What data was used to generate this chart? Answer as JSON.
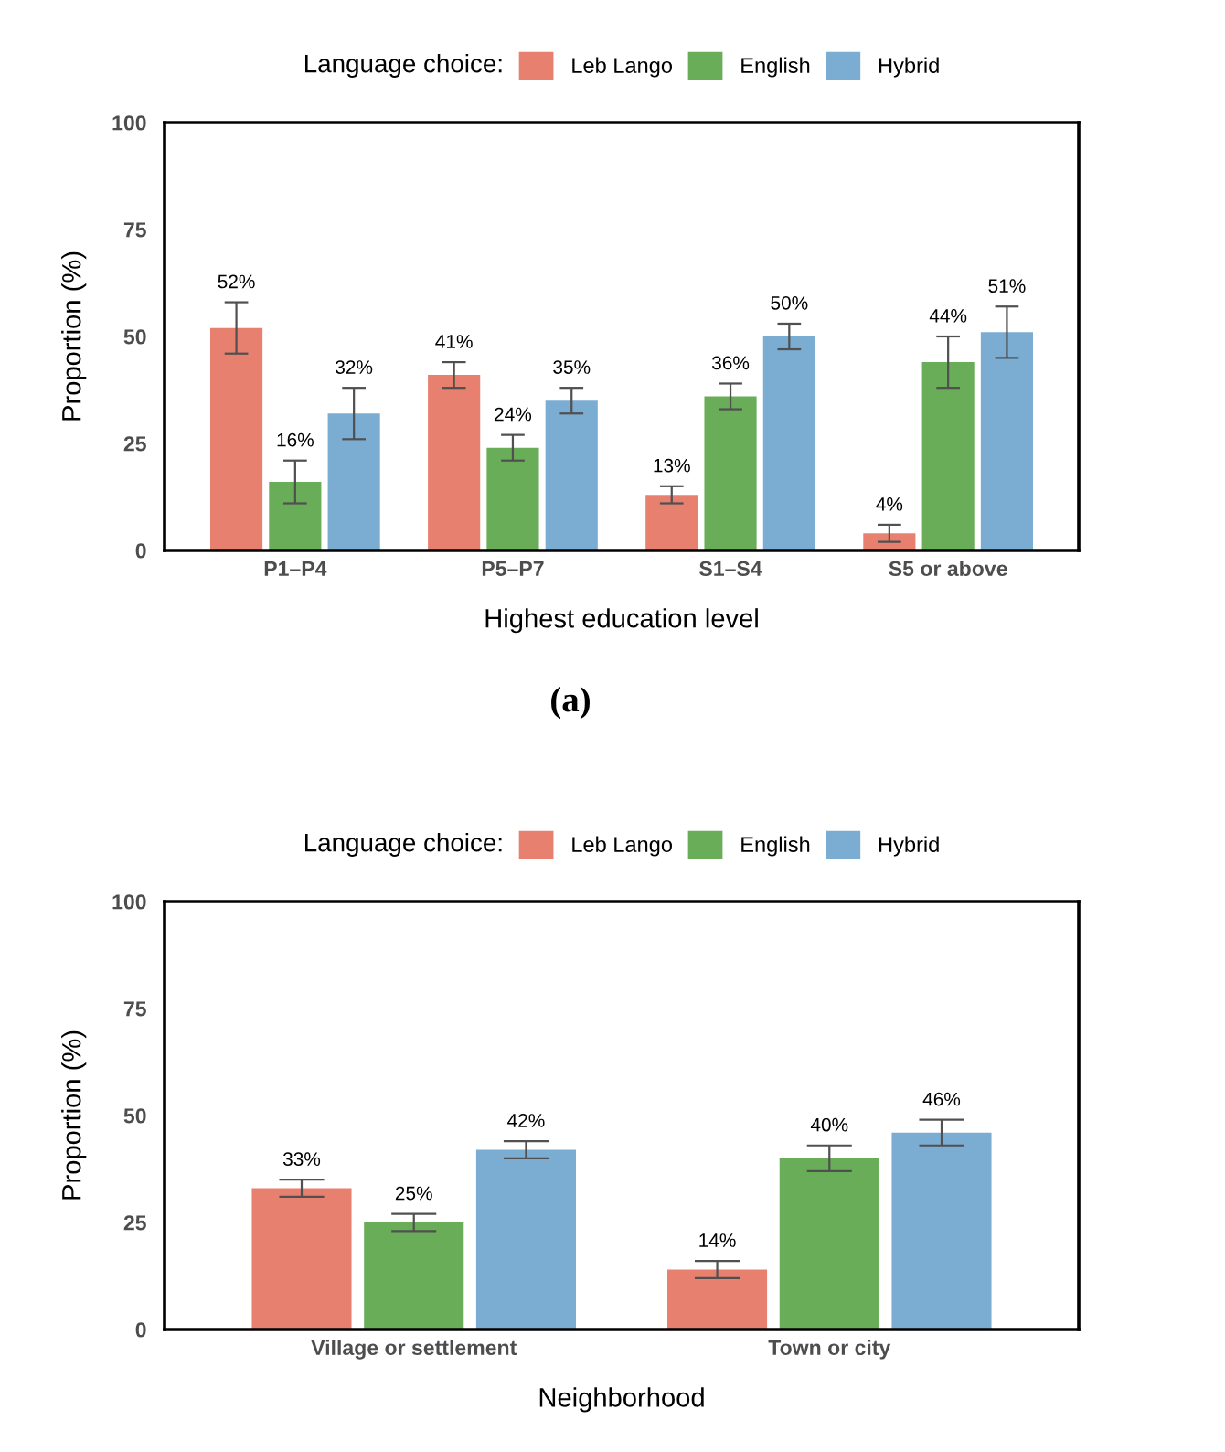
{
  "chart_data": [
    {
      "type": "bar",
      "categories": [
        "P1–P4",
        "P5–P7",
        "S1–S4",
        "S5 or above"
      ],
      "xlabel": "Highest education level",
      "ylabel": "Proportion (%)",
      "legend_title": "Language choice:",
      "legend": "top",
      "ylim": [
        0,
        100
      ],
      "yticks": [
        0,
        25,
        50,
        75,
        100
      ],
      "annotations": [
        "(a)"
      ],
      "series": [
        {
          "name": "Leb Lango",
          "color": "#e8806f",
          "values": [
            52,
            41,
            13,
            4
          ],
          "errors": [
            6,
            3,
            2,
            2
          ],
          "value_labels": [
            "52%",
            "41%",
            "13%",
            "4%"
          ]
        },
        {
          "name": "English",
          "color": "#69ad58",
          "values": [
            16,
            24,
            36,
            44
          ],
          "errors": [
            5,
            3,
            3,
            6
          ],
          "value_labels": [
            "16%",
            "24%",
            "36%",
            "44%"
          ]
        },
        {
          "name": "Hybrid",
          "color": "#7badd3",
          "values": [
            32,
            35,
            50,
            51
          ],
          "errors": [
            6,
            3,
            3,
            6
          ],
          "value_labels": [
            "32%",
            "35%",
            "50%",
            "51%"
          ]
        }
      ]
    },
    {
      "type": "bar",
      "categories": [
        "Village or settlement",
        "Town or city"
      ],
      "xlabel": "Neighborhood",
      "ylabel": "Proportion (%)",
      "legend_title": "Language choice:",
      "legend": "top",
      "ylim": [
        0,
        100
      ],
      "yticks": [
        0,
        25,
        50,
        75,
        100
      ],
      "series": [
        {
          "name": "Leb Lango",
          "color": "#e8806f",
          "values": [
            33,
            14
          ],
          "errors": [
            2,
            2
          ],
          "value_labels": [
            "33%",
            "14%"
          ]
        },
        {
          "name": "English",
          "color": "#69ad58",
          "values": [
            25,
            40
          ],
          "errors": [
            2,
            3
          ],
          "value_labels": [
            "25%",
            "40%"
          ]
        },
        {
          "name": "Hybrid",
          "color": "#7badd3",
          "values": [
            42,
            46
          ],
          "errors": [
            2,
            3
          ],
          "value_labels": [
            "42%",
            "46%"
          ]
        }
      ]
    }
  ]
}
